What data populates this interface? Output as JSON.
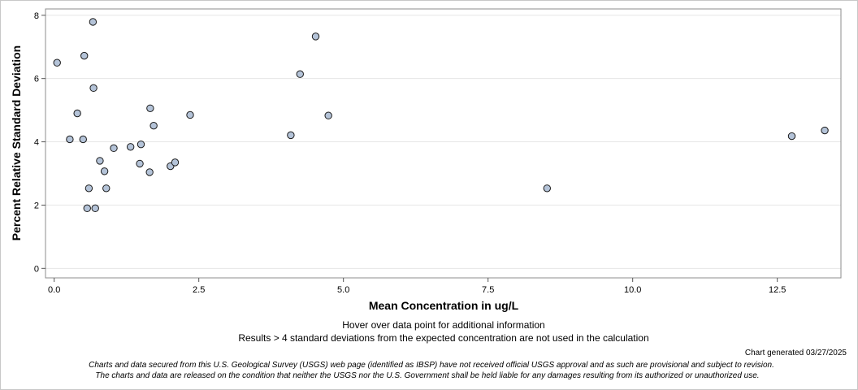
{
  "chart_data": {
    "type": "scatter",
    "xlabel": "Mean Concentration in ug/L",
    "ylabel": "Percent Relative Standard Deviation",
    "xlim": [
      -0.15,
      13.6
    ],
    "ylim": [
      -0.3,
      8.2
    ],
    "x_ticks": [
      0,
      2.5,
      5,
      7.5,
      10,
      12.5
    ],
    "x_tick_labels": [
      "0.0",
      "2.5",
      "5.0",
      "7.5",
      "10.0",
      "12.5"
    ],
    "y_ticks": [
      0,
      2,
      4,
      6,
      8
    ],
    "y_tick_labels": [
      "0",
      "2",
      "4",
      "6",
      "8"
    ],
    "grid": "horizontal",
    "marker_fill": "#b4c3d8",
    "marker_stroke": "#1a1a1a",
    "points": [
      {
        "x": 0.05,
        "y": 6.5
      },
      {
        "x": 0.27,
        "y": 4.08
      },
      {
        "x": 0.4,
        "y": 4.9
      },
      {
        "x": 0.5,
        "y": 4.08
      },
      {
        "x": 0.52,
        "y": 6.72
      },
      {
        "x": 0.57,
        "y": 1.9
      },
      {
        "x": 0.6,
        "y": 2.53
      },
      {
        "x": 0.67,
        "y": 7.79
      },
      {
        "x": 0.68,
        "y": 5.7
      },
      {
        "x": 0.71,
        "y": 1.9
      },
      {
        "x": 0.79,
        "y": 3.4
      },
      {
        "x": 0.87,
        "y": 3.07
      },
      {
        "x": 0.9,
        "y": 2.53
      },
      {
        "x": 1.03,
        "y": 3.8
      },
      {
        "x": 1.32,
        "y": 3.84
      },
      {
        "x": 1.48,
        "y": 3.31
      },
      {
        "x": 1.5,
        "y": 3.92
      },
      {
        "x": 1.65,
        "y": 3.04
      },
      {
        "x": 1.66,
        "y": 5.06
      },
      {
        "x": 1.72,
        "y": 4.51
      },
      {
        "x": 2.01,
        "y": 3.23
      },
      {
        "x": 2.09,
        "y": 3.35
      },
      {
        "x": 2.35,
        "y": 4.85
      },
      {
        "x": 4.09,
        "y": 4.21
      },
      {
        "x": 4.25,
        "y": 6.14
      },
      {
        "x": 4.52,
        "y": 7.33
      },
      {
        "x": 4.74,
        "y": 4.83
      },
      {
        "x": 8.52,
        "y": 2.53
      },
      {
        "x": 12.75,
        "y": 4.18
      },
      {
        "x": 13.32,
        "y": 4.36
      }
    ]
  },
  "notes": {
    "hover": "Hover over data point for additional information",
    "results": "Results > 4 standard deviations from the expected concentration are not used in the calculation",
    "generated": "Chart generated 03/27/2025",
    "disclaimer1": "Charts and data secured from this U.S. Geological Survey (USGS) web page (identified as IBSP) have not received official USGS approval and as such are provisional and subject to revision.",
    "disclaimer2": "The charts and data are released on the condition that neither the USGS nor the U.S. Government shall be held liable for any damages resulting from its authorized or unauthorized use."
  }
}
